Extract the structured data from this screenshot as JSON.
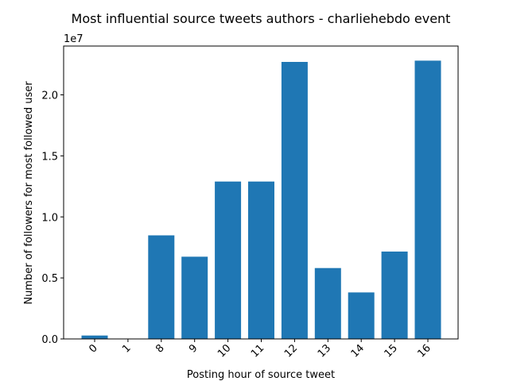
{
  "chart_data": {
    "type": "bar",
    "title": "Most influential source tweets authors - charliehebdo event",
    "xlabel": "Posting hour of source tweet",
    "ylabel": "Number of followers for most followed user",
    "y_offset_label": "1e7",
    "categories": [
      "0",
      "1",
      "8",
      "9",
      "10",
      "11",
      "12",
      "13",
      "14",
      "15",
      "16"
    ],
    "values": [
      0.028,
      0.003,
      0.849,
      0.674,
      1.29,
      1.29,
      2.27,
      0.581,
      0.381,
      0.716,
      2.28
    ],
    "value_multiplier": 10000000,
    "ylim": [
      0,
      2.4
    ],
    "yticks": [
      "0.0",
      "0.5",
      "1.0",
      "1.5",
      "2.0"
    ],
    "ytick_values": [
      0,
      0.5,
      1.0,
      1.5,
      2.0
    ],
    "grid": false,
    "colors": {
      "bar": "#1f77b4",
      "axis": "#000000"
    }
  }
}
